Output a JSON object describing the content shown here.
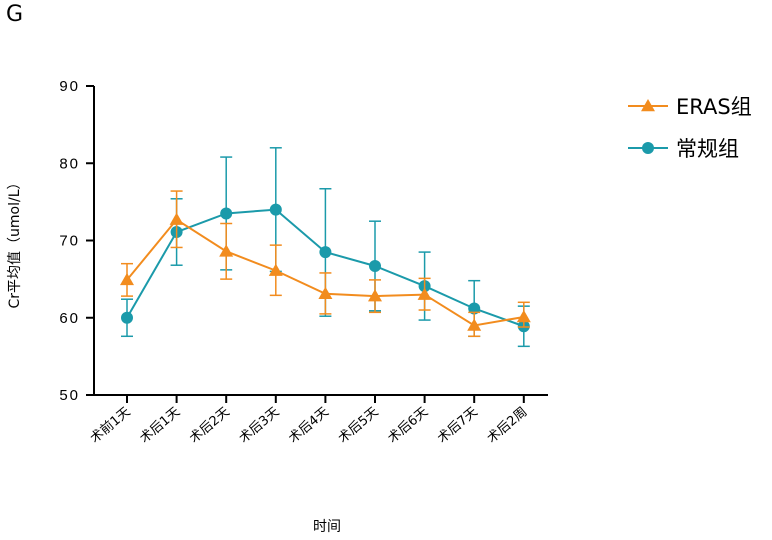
{
  "panel_label": "G",
  "chart_data": {
    "type": "line",
    "title": "",
    "xlabel": "时间",
    "ylabel": "Cr平均值（umol/L）",
    "ylim": [
      50,
      90
    ],
    "yticks": [
      50,
      60,
      70,
      80,
      90
    ],
    "grid": false,
    "legend_position": "top-right",
    "categories": [
      "术前1天",
      "术后1天",
      "术后2天",
      "术后3天",
      "术后4天",
      "术后5天",
      "术后6天",
      "术后7天",
      "术后2周"
    ],
    "series": [
      {
        "name": "ERAS组",
        "marker": "triangle",
        "color": "#F28C1E",
        "values": [
          64.9,
          72.7,
          68.6,
          66.1,
          63.1,
          62.8,
          63.0,
          59.0,
          60.1
        ],
        "error_low": [
          62.8,
          69.1,
          65.0,
          62.9,
          60.5,
          60.7,
          61.0,
          57.6,
          58.8
        ],
        "error_high": [
          67.0,
          76.4,
          72.2,
          69.4,
          65.8,
          64.9,
          65.1,
          60.7,
          62.0
        ]
      },
      {
        "name": "常规组",
        "marker": "circle",
        "color": "#1B9AAA",
        "values": [
          60.0,
          71.1,
          73.5,
          74.0,
          68.5,
          66.7,
          64.1,
          61.2,
          58.9
        ],
        "error_low": [
          57.6,
          66.8,
          66.2,
          66.0,
          60.2,
          60.9,
          59.7,
          57.6,
          56.3
        ],
        "error_high": [
          62.4,
          75.4,
          80.8,
          82.0,
          76.7,
          72.5,
          68.5,
          64.8,
          61.5
        ]
      }
    ]
  }
}
